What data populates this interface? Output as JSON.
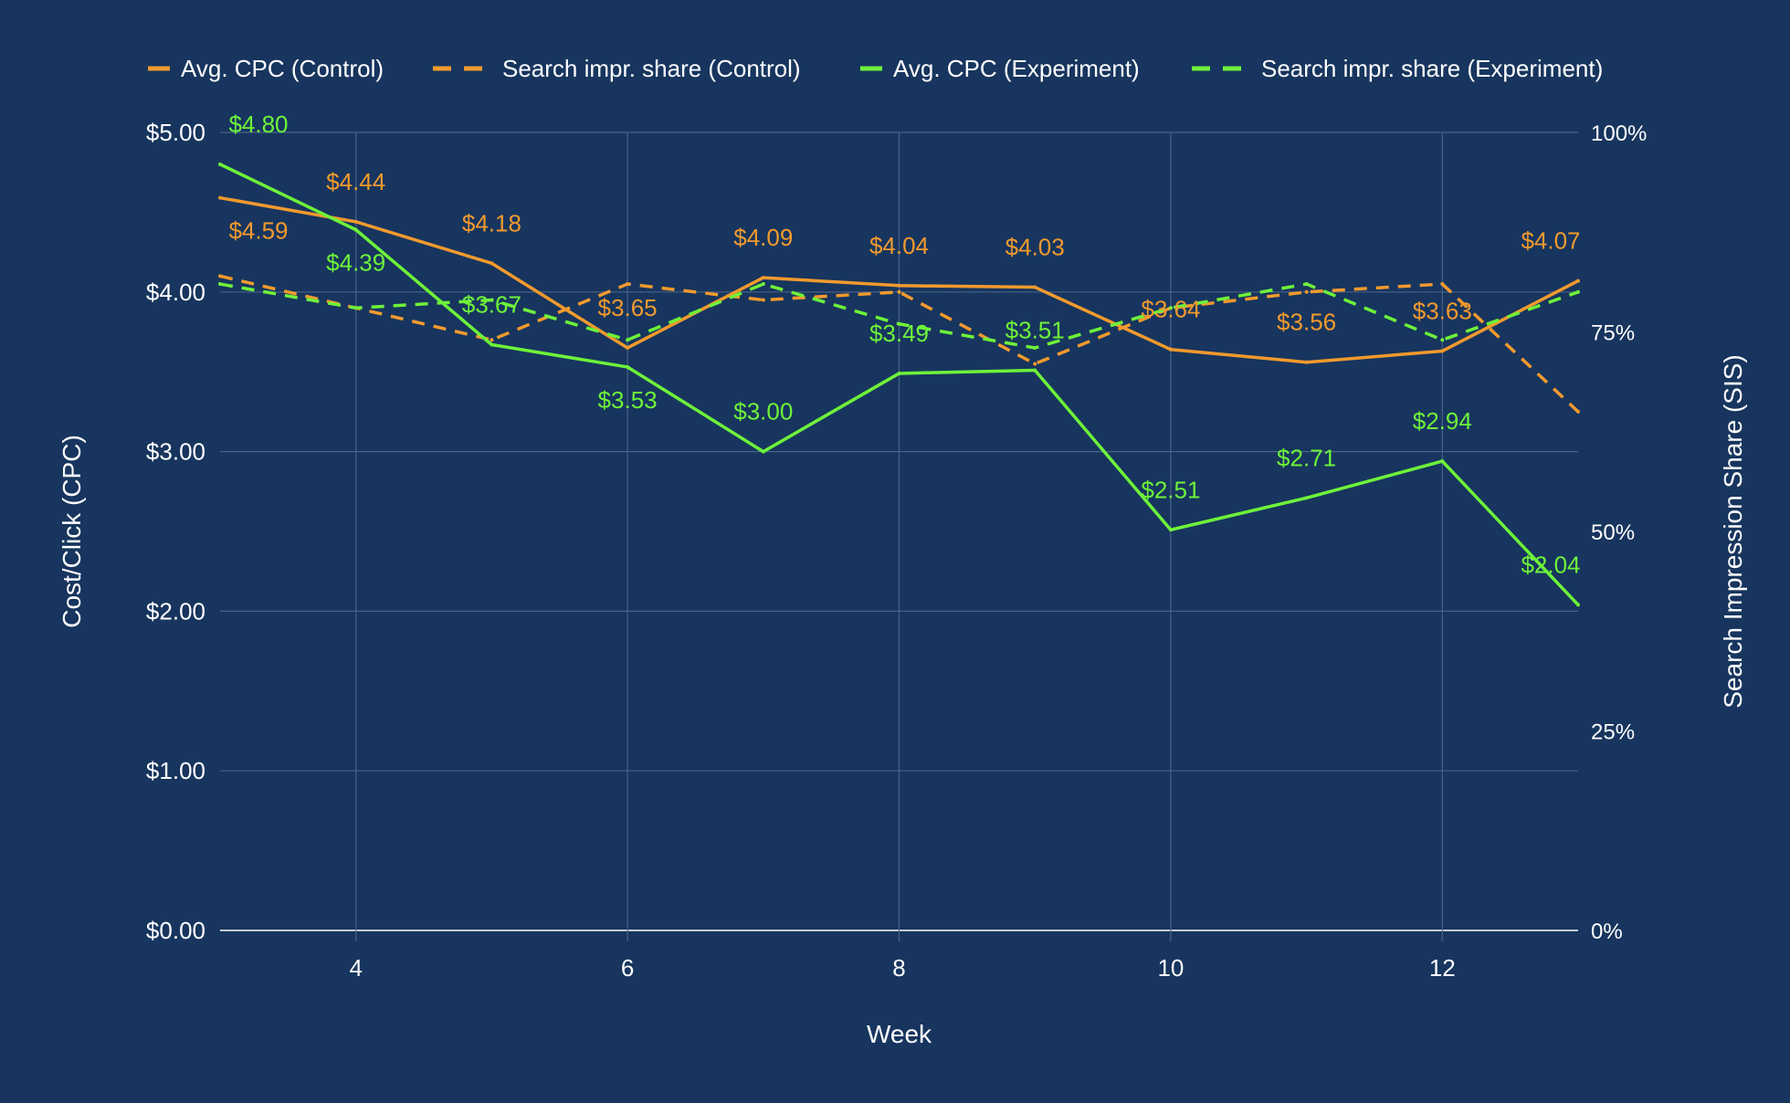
{
  "chart_data": {
    "type": "line",
    "xlabel": "Week",
    "ylabel": "Cost/Click (CPC)",
    "y2label": "Search Impression Share (SIS)",
    "x": [
      3,
      4,
      5,
      6,
      7,
      8,
      9,
      10,
      11,
      12,
      13
    ],
    "xticks": [
      4,
      6,
      8,
      10,
      12
    ],
    "xlim": [
      3,
      13
    ],
    "ylim": [
      0,
      5
    ],
    "y2lim": [
      0,
      100
    ],
    "yticks": [
      "$0.00",
      "$1.00",
      "$2.00",
      "$3.00",
      "$4.00",
      "$5.00"
    ],
    "y2ticks": [
      "0%",
      "25%",
      "50%",
      "75%",
      "100%"
    ],
    "grid": true,
    "legend_placement": "top",
    "colors": {
      "control": "#f29a2e",
      "experiment": "#6ef23a",
      "background": "#17355e",
      "grid": "#4a6385",
      "text": "#ffffff"
    },
    "series": [
      {
        "name": "Avg. CPC (Control)",
        "axis": "left",
        "style": "solid",
        "color": "#f29a2e",
        "values": [
          4.59,
          4.44,
          4.18,
          3.65,
          4.09,
          4.04,
          4.03,
          3.64,
          3.56,
          3.63,
          4.07
        ],
        "labels": [
          "$4.59",
          "$4.44",
          "$4.18",
          "$3.65",
          "$4.09",
          "$4.04",
          "$4.03",
          "$3.64",
          "$3.56",
          "$3.63",
          "$4.07"
        ]
      },
      {
        "name": "Search impr. share (Control)",
        "axis": "right",
        "style": "dashed",
        "color": "#f29a2e",
        "values": [
          82,
          78,
          74,
          81,
          79,
          80,
          71,
          78,
          80,
          81,
          65
        ]
      },
      {
        "name": "Avg. CPC (Experiment)",
        "axis": "left",
        "style": "solid",
        "color": "#6ef23a",
        "values": [
          4.8,
          4.39,
          3.67,
          3.53,
          3.0,
          3.49,
          3.51,
          2.51,
          2.71,
          2.94,
          2.04
        ],
        "labels": [
          "$4.80",
          "$4.39",
          "$3.67",
          "$3.53",
          "$3.00",
          "$3.49",
          "$3.51",
          "$2.51",
          "$2.71",
          "$2.94",
          "$2.04"
        ]
      },
      {
        "name": "Search impr. share (Experiment)",
        "axis": "right",
        "style": "dashed",
        "color": "#6ef23a",
        "values": [
          81,
          78,
          79,
          74,
          81,
          76,
          73,
          78,
          81,
          74,
          80
        ]
      }
    ]
  }
}
